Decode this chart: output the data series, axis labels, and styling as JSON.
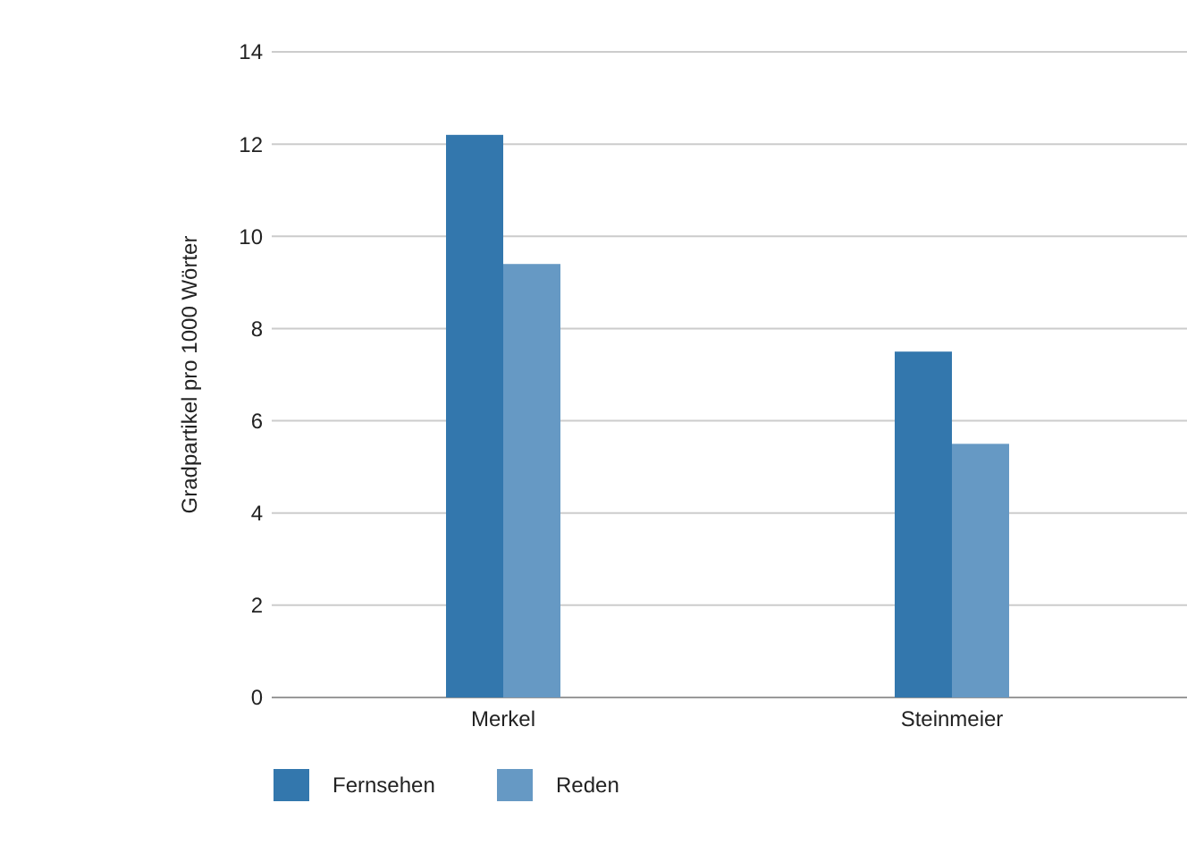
{
  "chart_data": {
    "type": "bar",
    "ylabel": "Gradpartikel pro 1000 Wörter",
    "categories": [
      "Merkel",
      "Steinmeier"
    ],
    "series": [
      {
        "name": "Fernsehen",
        "color": "#3377ad",
        "values": [
          12.2,
          7.5
        ]
      },
      {
        "name": "Reden",
        "color": "#6699c4",
        "values": [
          9.4,
          5.5
        ]
      }
    ],
    "ylim": [
      0,
      14
    ],
    "yticks": [
      0,
      2,
      4,
      6,
      8,
      10,
      12,
      14
    ],
    "grid": "y",
    "legend": "bottom left"
  }
}
